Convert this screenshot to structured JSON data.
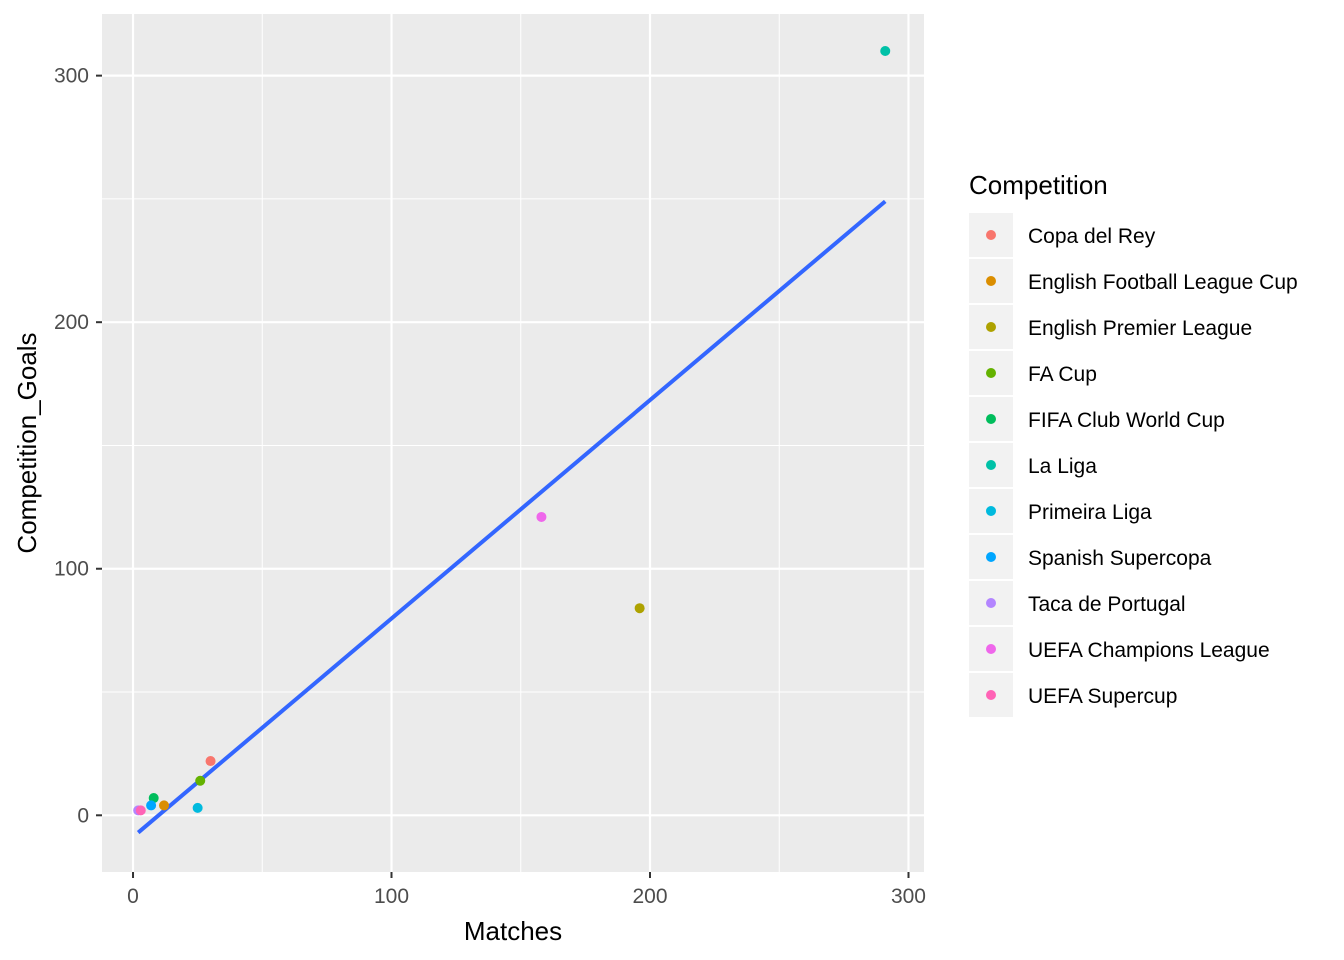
{
  "chart_data": {
    "type": "scatter",
    "title": "",
    "xlabel": "Matches",
    "ylabel": "Competition_Goals",
    "xlim": [
      -12,
      306
    ],
    "ylim": [
      -23,
      325
    ],
    "x_ticks": [
      0,
      100,
      200,
      300
    ],
    "y_ticks": [
      0,
      100,
      200,
      300
    ],
    "grid": true,
    "legend": {
      "title": "Competition",
      "position": "right"
    },
    "series": [
      {
        "name": "Copa del Rey",
        "color": "#F8766D",
        "points": [
          [
            30,
            22
          ]
        ]
      },
      {
        "name": "English Football League Cup",
        "color": "#DB8E00",
        "points": [
          [
            12,
            4
          ]
        ]
      },
      {
        "name": "English Premier League",
        "color": "#AEA200",
        "points": [
          [
            196,
            84
          ]
        ]
      },
      {
        "name": "FA Cup",
        "color": "#64B200",
        "points": [
          [
            26,
            14
          ]
        ]
      },
      {
        "name": "FIFA Club World Cup",
        "color": "#00BD5C",
        "points": [
          [
            8,
            7
          ]
        ]
      },
      {
        "name": "La Liga",
        "color": "#00C1A7",
        "points": [
          [
            291,
            310
          ]
        ]
      },
      {
        "name": "Primeira Liga",
        "color": "#00BADE",
        "points": [
          [
            25,
            3
          ]
        ]
      },
      {
        "name": "Spanish Supercopa",
        "color": "#00A6FF",
        "points": [
          [
            7,
            4
          ]
        ]
      },
      {
        "name": "Taca de Portugal",
        "color": "#B385FF",
        "points": [
          [
            2,
            2
          ]
        ]
      },
      {
        "name": "UEFA Champions League",
        "color": "#EF67EB",
        "points": [
          [
            158,
            121
          ]
        ]
      },
      {
        "name": "UEFA Supercup",
        "color": "#FF63B6",
        "points": [
          [
            3,
            2
          ]
        ]
      }
    ],
    "trend_line": {
      "color": "#3366FF",
      "x": [
        2,
        291
      ],
      "y": [
        -7,
        249
      ]
    }
  }
}
